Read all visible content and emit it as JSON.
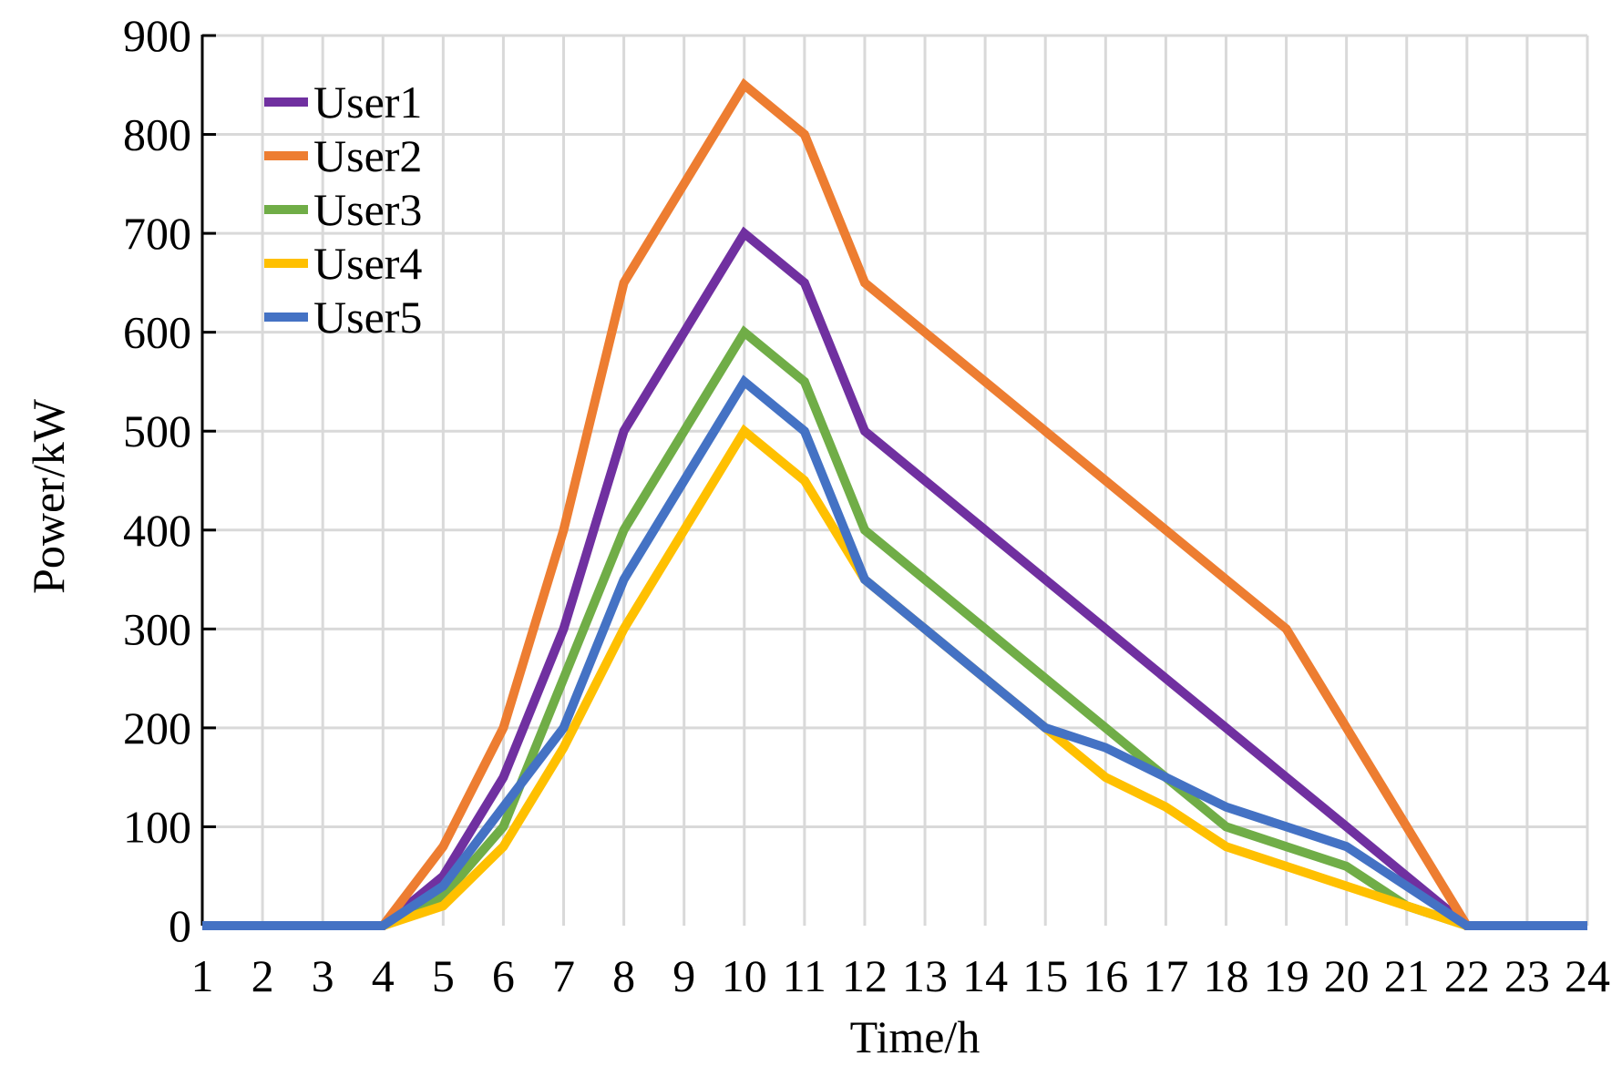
{
  "chart_data": {
    "type": "line",
    "xlabel": "Time/h",
    "ylabel": "Power/kW",
    "ylim": [
      0,
      900
    ],
    "yticks": [
      0,
      100,
      200,
      300,
      400,
      500,
      600,
      700,
      800,
      900
    ],
    "x": [
      1,
      2,
      3,
      4,
      5,
      6,
      7,
      8,
      9,
      10,
      11,
      12,
      13,
      14,
      15,
      16,
      17,
      18,
      19,
      20,
      21,
      22,
      23,
      24
    ],
    "xtick_labels": [
      "1",
      "2",
      "3",
      "4",
      "5",
      "6",
      "7",
      "8",
      "9",
      "10",
      "11",
      "12",
      "13",
      "14",
      "15",
      "16",
      "17",
      "18",
      "19",
      "20",
      "21",
      "22",
      "23",
      "24"
    ],
    "grid": true,
    "legend_position": "top-left",
    "series": [
      {
        "name": "User1",
        "color": "#7030a0",
        "values": [
          0,
          0,
          0,
          0,
          50,
          150,
          300,
          500,
          600,
          700,
          650,
          500,
          450,
          400,
          350,
          300,
          250,
          200,
          150,
          100,
          50,
          0,
          0,
          0
        ]
      },
      {
        "name": "User2",
        "color": "#ed7d31",
        "values": [
          0,
          0,
          0,
          0,
          80,
          200,
          400,
          650,
          750,
          850,
          800,
          650,
          600,
          550,
          500,
          450,
          400,
          350,
          300,
          200,
          100,
          0,
          0,
          0
        ]
      },
      {
        "name": "User3",
        "color": "#70ad47",
        "values": [
          0,
          0,
          0,
          0,
          30,
          100,
          250,
          400,
          500,
          600,
          550,
          400,
          350,
          300,
          250,
          200,
          150,
          100,
          80,
          60,
          20,
          0,
          0,
          0
        ]
      },
      {
        "name": "User4",
        "color": "#ffc000",
        "values": [
          0,
          0,
          0,
          0,
          20,
          80,
          180,
          300,
          400,
          500,
          450,
          350,
          300,
          250,
          200,
          150,
          120,
          80,
          60,
          40,
          20,
          0,
          0,
          0
        ]
      },
      {
        "name": "User5",
        "color": "#4472c4",
        "values": [
          0,
          0,
          0,
          0,
          40,
          120,
          200,
          350,
          450,
          550,
          500,
          350,
          300,
          250,
          200,
          180,
          150,
          120,
          100,
          80,
          40,
          0,
          0,
          0
        ]
      }
    ]
  }
}
